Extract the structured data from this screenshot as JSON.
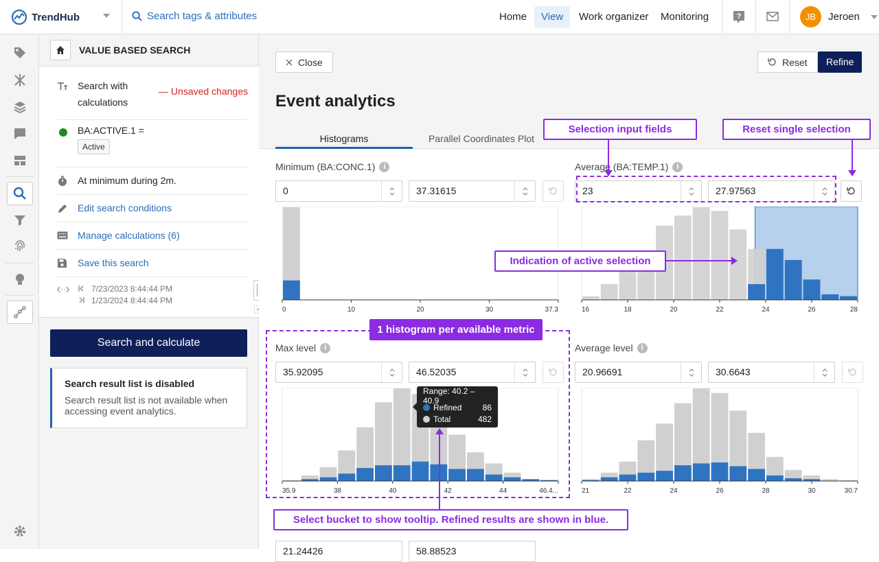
{
  "topbar": {
    "brand": "TrendHub",
    "search_placeholder": "Search tags & attributes",
    "nav": [
      "Home",
      "View",
      "Work organizer",
      "Monitoring"
    ],
    "active_nav": "View",
    "user_initials": "JB",
    "user_name": "Jeroen",
    "avatar_color": "#f29100"
  },
  "rail_icons": [
    "tag-icon",
    "bulk-icon",
    "layers-icon",
    "chat-icon",
    "dashboard-icon",
    "search-icon",
    "filter-icon",
    "fingerprint-icon",
    "lightbulb-icon",
    "recommendation-icon",
    "settings-icon"
  ],
  "left_panel": {
    "title": "VALUE BASED SEARCH",
    "search_type": "Search with calculations",
    "unsaved": "— Unsaved changes",
    "condition_tag": "BA:ACTIVE.1 =",
    "condition_value": "Active",
    "duration": "At minimum during 2m.",
    "edit_conditions": "Edit search conditions",
    "manage_calculations": "Manage calculations (6)",
    "save_search": "Save this search",
    "date_start": "7/23/2023 8:44:44 PM",
    "date_end": "1/23/2024 8:44:44 PM",
    "search_button": "Search and calculate",
    "notice_title": "Search result list is disabled",
    "notice_text": "Search result list is not available when accessing event analytics."
  },
  "main": {
    "close": "Close",
    "reset": "Reset",
    "refine": "Refine",
    "title": "Event analytics",
    "tabs": [
      "Histograms",
      "Parallel Coordinates Plot"
    ],
    "active_tab": "Histograms"
  },
  "colors": {
    "total": "#d0d0d0",
    "refined": "#2f74c0",
    "selection": "#a9c8ea",
    "annotation": "#8b2be2",
    "primary": "#0f1f5a"
  },
  "histograms": [
    {
      "label": "Minimum (BA:CONC.1)",
      "min_value": "0",
      "max_value": "37.31615",
      "x_ticks": [
        "0",
        "10",
        "20",
        "30",
        "37.3"
      ],
      "total": [
        100,
        0,
        0,
        0,
        0,
        0,
        0,
        0,
        0,
        0,
        0,
        0,
        0,
        0,
        0
      ],
      "refined": [
        21,
        0,
        0,
        0,
        0,
        0,
        0,
        0,
        0,
        0,
        0,
        0,
        0,
        0,
        0
      ],
      "selection": null
    },
    {
      "label": "Average (BA:TEMP.1)",
      "min_value": "23",
      "max_value": "27.97563",
      "x_ticks": [
        "16",
        "18",
        "20",
        "22",
        "24",
        "26",
        "28"
      ],
      "total": [
        4,
        17,
        36,
        52,
        80,
        91,
        100,
        96,
        76,
        55,
        26,
        12,
        5,
        3,
        1
      ],
      "refined": [
        0,
        0,
        0,
        0,
        0,
        0,
        0,
        0,
        0,
        17,
        55,
        43,
        22,
        6,
        4
      ],
      "selection": [
        0.628,
        1.0
      ]
    },
    {
      "label": "Max level",
      "min_value": "35.92095",
      "max_value": "46.52035",
      "x_ticks": [
        "35.9",
        "38",
        "40",
        "42",
        "44",
        "46.4..."
      ],
      "total": [
        1,
        6,
        15,
        33,
        58,
        85,
        100,
        94,
        72,
        50,
        31,
        19,
        9,
        2,
        1
      ],
      "refined": [
        0,
        2,
        4,
        8,
        14,
        17,
        17,
        21,
        18,
        13,
        13,
        7,
        4,
        2,
        1
      ],
      "selection": null
    },
    {
      "label": "Average level",
      "min_value": "20.96691",
      "max_value": "30.6643",
      "x_ticks": [
        "21",
        "22",
        "24",
        "26",
        "28",
        "30",
        "30.7"
      ],
      "total": [
        2,
        9,
        21,
        44,
        62,
        84,
        100,
        95,
        76,
        52,
        26,
        12,
        6,
        2,
        1
      ],
      "refined": [
        1,
        4,
        7,
        9,
        11,
        17,
        19,
        20,
        16,
        13,
        6,
        3,
        2,
        0,
        0
      ],
      "selection": null
    }
  ],
  "fifth_row": {
    "min_value": "21.24426",
    "max_value": "58.88523"
  },
  "tooltip": {
    "range": "Range: 40.2 – 40.9",
    "refined_label": "Refined",
    "refined_value": "86",
    "total_label": "Total",
    "total_value": "482"
  },
  "annotations": {
    "selection_inputs": "Selection input fields",
    "reset_single": "Reset single selection",
    "active_selection": "Indication of active selection",
    "one_per_metric": "1 histogram per  available metric",
    "select_bucket": "Select bucket to show tooltip. Refined results are shown in blue."
  }
}
